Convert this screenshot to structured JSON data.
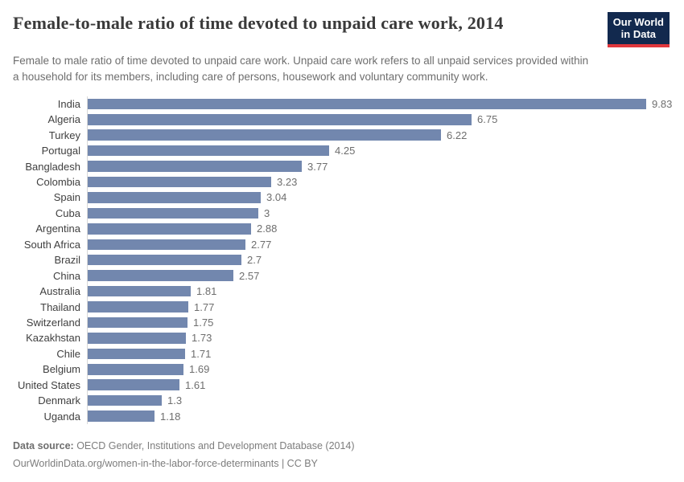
{
  "header": {
    "title": "Female-to-male ratio of time devoted to unpaid care work, 2014",
    "subtitle": "Female to male ratio of time devoted to unpaid care work. Unpaid care work refers to all unpaid services provided within a household for its members, including care of persons, housework and voluntary community work.",
    "logo_line1": "Our World",
    "logo_line2": "in Data"
  },
  "chart_data": {
    "type": "bar",
    "orientation": "horizontal",
    "title": "Female-to-male ratio of time devoted to unpaid care work, 2014",
    "categories": [
      "India",
      "Algeria",
      "Turkey",
      "Portugal",
      "Bangladesh",
      "Colombia",
      "Spain",
      "Cuba",
      "Argentina",
      "South Africa",
      "Brazil",
      "China",
      "Australia",
      "Thailand",
      "Switzerland",
      "Kazakhstan",
      "Chile",
      "Belgium",
      "United States",
      "Denmark",
      "Uganda"
    ],
    "values": [
      9.83,
      6.75,
      6.22,
      4.25,
      3.77,
      3.23,
      3.04,
      3,
      2.88,
      2.77,
      2.7,
      2.57,
      1.81,
      1.77,
      1.75,
      1.73,
      1.71,
      1.69,
      1.61,
      1.3,
      1.18
    ],
    "value_labels": [
      "9.83",
      "6.75",
      "6.22",
      "4.25",
      "3.77",
      "3.23",
      "3.04",
      "3",
      "2.88",
      "2.77",
      "2.7",
      "2.57",
      "1.81",
      "1.77",
      "1.75",
      "1.73",
      "1.71",
      "1.69",
      "1.61",
      "1.3",
      "1.18"
    ],
    "xlim": [
      0,
      9.83
    ],
    "bar_color": "#7287ae",
    "grid": false,
    "legend": false
  },
  "footer": {
    "source_label": "Data source:",
    "source_text": " OECD Gender, Institutions and Development Database (2014)",
    "link_text": "OurWorldinData.org/women-in-the-labor-force-determinants",
    "separator": " | ",
    "license": "CC BY"
  },
  "colors": {
    "bar": "#7287ae",
    "axis_line": "#d8d8d8",
    "title_text": "#3a3a3a",
    "subtitle_text": "#6e6e6e",
    "label_text": "#404040",
    "value_text": "#6e6e6e",
    "logo_bg": "#12294e",
    "logo_accent": "#e0373c"
  }
}
